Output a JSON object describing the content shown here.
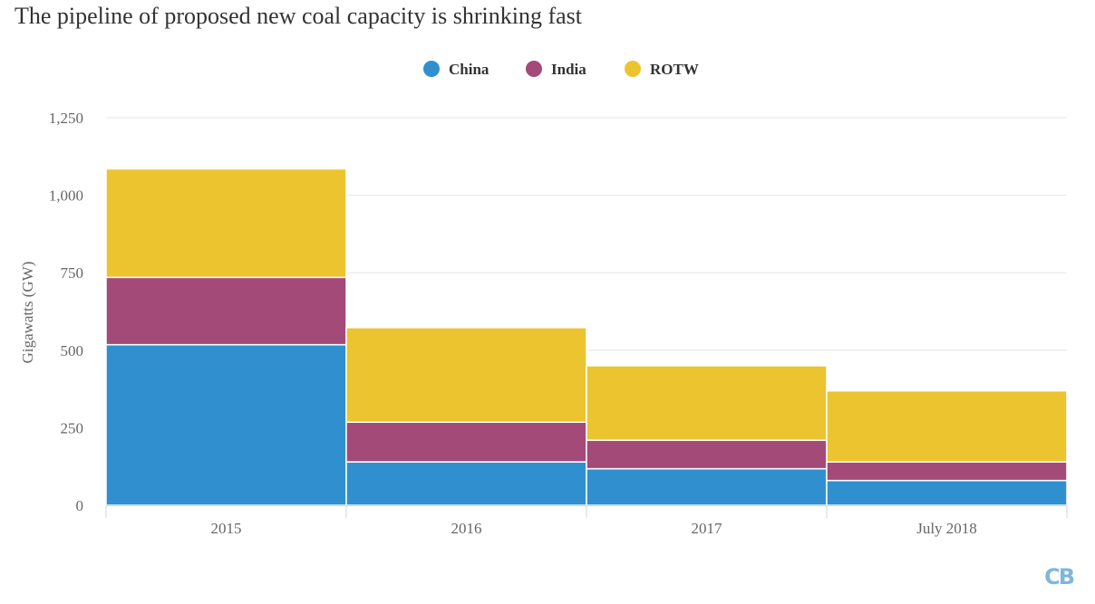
{
  "chart_data": {
    "type": "bar",
    "title": "The pipeline of proposed new coal capacity is shrinking fast",
    "ylabel": "Gigawatts (GW)",
    "categories": [
      "2015",
      "2016",
      "2017",
      "July 2018"
    ],
    "series": [
      {
        "name": "China",
        "color": "#3090cf",
        "values": [
          518,
          140,
          118,
          80
        ]
      },
      {
        "name": "India",
        "color": "#a34a79",
        "values": [
          217,
          128,
          92,
          60
        ]
      },
      {
        "name": "ROTW",
        "color": "#ecc430",
        "values": [
          350,
          305,
          240,
          229
        ]
      }
    ],
    "stacked": true,
    "ylim": [
      0,
      1250
    ],
    "yticks": [
      0,
      250,
      500,
      750,
      1000,
      1250
    ],
    "ytick_labels": [
      "0",
      "250",
      "500",
      "750",
      "1,000",
      "1,250"
    ],
    "grid": true,
    "legend_position": "top-center"
  },
  "logo": {
    "text": "CB",
    "color": "#7fb7da"
  }
}
